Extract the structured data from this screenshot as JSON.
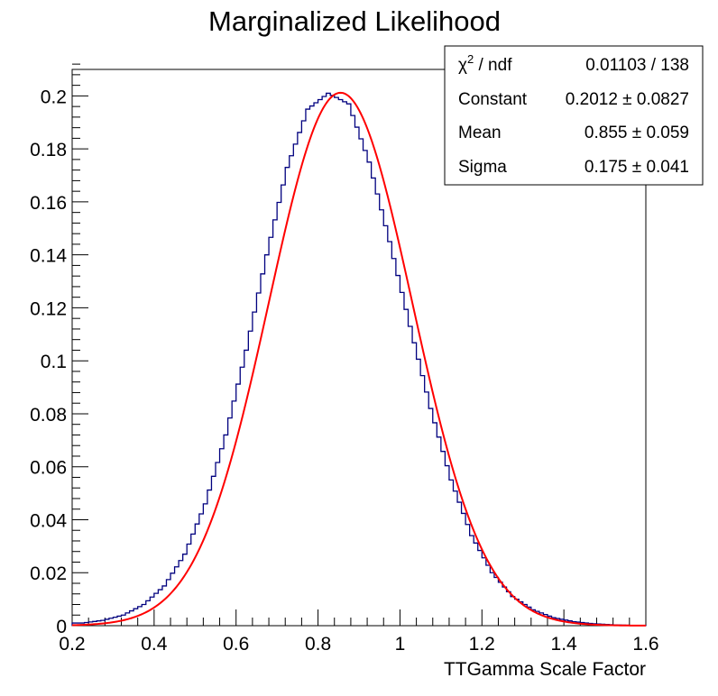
{
  "chart_data": {
    "type": "histogram",
    "title": "Marginalized Likelihood",
    "xlabel": "TTGamma Scale Factor",
    "ylabel": "",
    "xlim": [
      0.2,
      1.6
    ],
    "ylim": [
      0,
      0.21
    ],
    "x_ticks": [
      "0.2",
      "0.4",
      "0.6",
      "0.8",
      "1",
      "1.2",
      "1.4",
      "1.6"
    ],
    "y_ticks": [
      "0",
      "0.02",
      "0.04",
      "0.06",
      "0.08",
      "0.1",
      "0.12",
      "0.14",
      "0.16",
      "0.18",
      "0.2"
    ],
    "x_tick_values": [
      0.2,
      0.4,
      0.6,
      0.8,
      1.0,
      1.2,
      1.4,
      1.6
    ],
    "y_tick_values": [
      0,
      0.02,
      0.04,
      0.06,
      0.08,
      0.1,
      0.12,
      0.14,
      0.16,
      0.18,
      0.2
    ],
    "grid": false,
    "histogram": {
      "color": "#00007f",
      "bin_edges": [
        0.2,
        0.25,
        0.3,
        0.35,
        0.4,
        0.45,
        0.5,
        0.55,
        0.6,
        0.65,
        0.7,
        0.75,
        0.8,
        0.85,
        0.9,
        0.95,
        1.0,
        1.05,
        1.1,
        1.15,
        1.2,
        1.25,
        1.3,
        1.35,
        1.4,
        1.45,
        1.5,
        1.55,
        1.6
      ],
      "counts": [
        0.001,
        0.002,
        0.004,
        0.008,
        0.015,
        0.027,
        0.046,
        0.072,
        0.104,
        0.14,
        0.173,
        0.195,
        0.201,
        0.197,
        0.175,
        0.145,
        0.113,
        0.082,
        0.055,
        0.034,
        0.02,
        0.011,
        0.006,
        0.003,
        0.0015,
        0.0007,
        0.0003,
        0.0001
      ]
    },
    "fit": {
      "color": "#ff0000",
      "function": "gaus",
      "constant": 0.2012,
      "mean": 0.855,
      "sigma": 0.175
    },
    "stats_box": {
      "position": "top-right",
      "rows": [
        {
          "label_html": "χ² / ndf",
          "label": "χ2 / ndf",
          "value": "0.01103 / 138"
        },
        {
          "label": "Constant",
          "value": "0.2012 ± 0.0827"
        },
        {
          "label": "Mean",
          "value": "0.855 ± 0.059"
        },
        {
          "label": "Sigma",
          "value": "0.175 ± 0.041"
        }
      ]
    }
  }
}
